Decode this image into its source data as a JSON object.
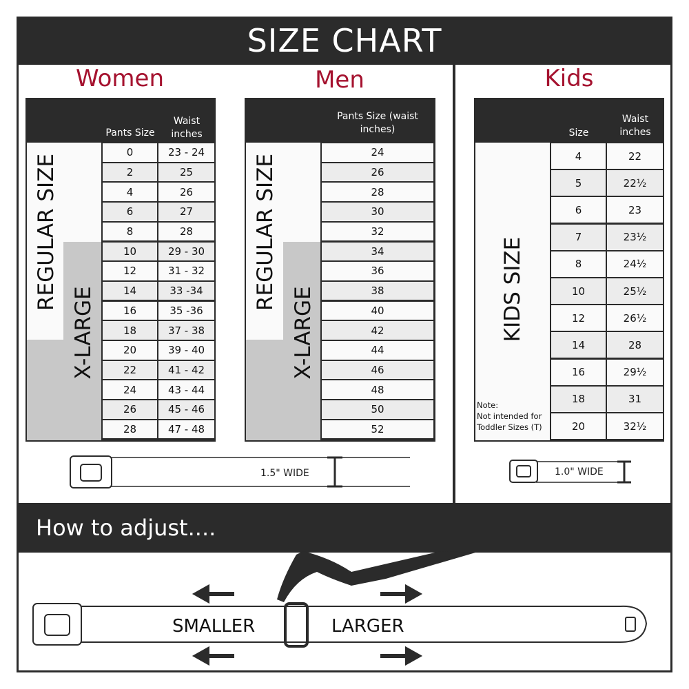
{
  "title": "SIZE CHART",
  "women": {
    "heading": "Women",
    "col1": "Pants Size",
    "col2": "Waist inches",
    "regular_label": "REGULAR SIZE",
    "xlarge_label": "X-LARGE",
    "rows": [
      [
        "0",
        "23 - 24"
      ],
      [
        "2",
        "25"
      ],
      [
        "4",
        "26"
      ],
      [
        "6",
        "27"
      ],
      [
        "8",
        "28"
      ],
      [
        "10",
        "29 - 30"
      ],
      [
        "12",
        "31 - 32"
      ],
      [
        "14",
        "33 -34"
      ],
      [
        "16",
        "35 -36"
      ],
      [
        "18",
        "37 - 38"
      ],
      [
        "20",
        "39 - 40"
      ],
      [
        "22",
        "41 - 42"
      ],
      [
        "24",
        "43 - 44"
      ],
      [
        "26",
        "45 - 46"
      ],
      [
        "28",
        "47 - 48"
      ]
    ],
    "width_label": "1.5\" WIDE"
  },
  "men": {
    "heading": "Men",
    "col1": "Pants Size (waist inches)",
    "regular_label": "REGULAR SIZE",
    "xlarge_label": "X-LARGE",
    "rows": [
      "24",
      "26",
      "28",
      "30",
      "32",
      "34",
      "36",
      "38",
      "40",
      "42",
      "44",
      "46",
      "48",
      "50",
      "52"
    ]
  },
  "kids": {
    "heading": "Kids",
    "col1": "Size",
    "col2": "Waist inches",
    "label": "KIDS SIZE",
    "note_title": "Note:",
    "note_line1": "Not intended for",
    "note_line2": "Toddler Sizes (T)",
    "rows": [
      [
        "4",
        "22"
      ],
      [
        "5",
        "22½"
      ],
      [
        "6",
        "23"
      ],
      [
        "7",
        "23½"
      ],
      [
        "8",
        "24½"
      ],
      [
        "10",
        "25½"
      ],
      [
        "12",
        "26½"
      ],
      [
        "14",
        "28"
      ],
      [
        "16",
        "29½"
      ],
      [
        "18",
        "31"
      ],
      [
        "20",
        "32½"
      ]
    ],
    "width_label": "1.0\" WIDE"
  },
  "adjust": {
    "heading": "How to adjust....",
    "smaller": "SMALLER",
    "larger": "LARGER"
  },
  "colors": {
    "dark": "#2b2b2b",
    "accent": "#a5122f",
    "gray": "#c8c8c8",
    "row_alt": "#ececec"
  }
}
